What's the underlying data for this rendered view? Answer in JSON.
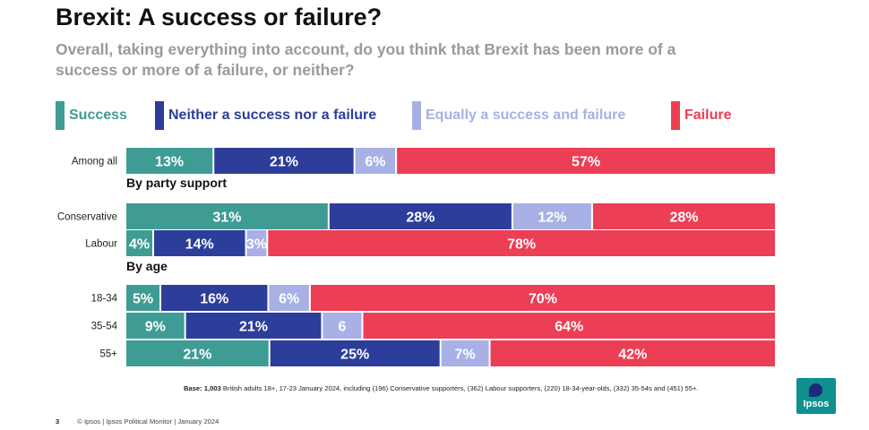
{
  "header": {
    "title": "Brexit: A success or failure?",
    "subtitle": "Overall, taking everything into account, do you think that Brexit has been more of a success or more of a failure, or neither?"
  },
  "colors": {
    "success": "#3f9c94",
    "neither": "#2c3e9a",
    "equally": "#a8b0e6",
    "failure": "#ec3e55"
  },
  "legend": [
    {
      "key": "success",
      "label": "Success",
      "color": "#3f9c94"
    },
    {
      "key": "neither",
      "label": "Neither a success nor a failure",
      "color": "#2c3e9a"
    },
    {
      "key": "equally",
      "label": "Equally a success and failure",
      "color": "#a8b0e6"
    },
    {
      "key": "failure",
      "label": "Failure",
      "color": "#ec3e55"
    }
  ],
  "chart_data": {
    "type": "bar",
    "orientation": "horizontal",
    "stacked": true,
    "series": [
      {
        "name": "Success",
        "values": [
          13,
          31,
          4,
          5,
          9,
          21
        ]
      },
      {
        "name": "Neither a success nor a failure",
        "values": [
          21,
          28,
          14,
          16,
          21,
          25
        ]
      },
      {
        "name": "Equally a success and failure",
        "values": [
          6,
          12,
          3,
          6,
          6,
          7
        ]
      },
      {
        "name": "Failure",
        "values": [
          57,
          28,
          78,
          70,
          64,
          42
        ]
      }
    ],
    "categories": [
      "Among all",
      "Conservative",
      "Labour",
      "18-34",
      "35-54",
      "55+"
    ],
    "data_labels": [
      [
        "13%",
        "21%",
        "6%",
        "57%"
      ],
      [
        "31%",
        "28%",
        "12%",
        "28%"
      ],
      [
        "4%",
        "14%",
        "3%",
        "78%"
      ],
      [
        "5%",
        "16%",
        "6%",
        "70%"
      ],
      [
        "9%",
        "21%",
        "6",
        "64%"
      ],
      [
        "21%",
        "25%",
        "7%",
        "42%"
      ]
    ],
    "groups": [
      {
        "label": "",
        "rows": [
          0
        ]
      },
      {
        "label": "By party support",
        "rows": [
          1,
          2
        ]
      },
      {
        "label": "By age",
        "rows": [
          3,
          4,
          5
        ]
      }
    ],
    "legend_position": "top",
    "grid": false
  },
  "base_note": {
    "bold": "Base: 1,003",
    "text": " British adults 18+, 17-23 January 2024, including (196) Conservative supporters, (362) Labour supporters, (220) 18-34-year-olds, (332) 35-54s and (451) 55+."
  },
  "footer": {
    "page_number": "3",
    "text": "© Ipsos | Ipsos Political Monitor | January 2024"
  },
  "logo": {
    "text": "Ipsos"
  }
}
